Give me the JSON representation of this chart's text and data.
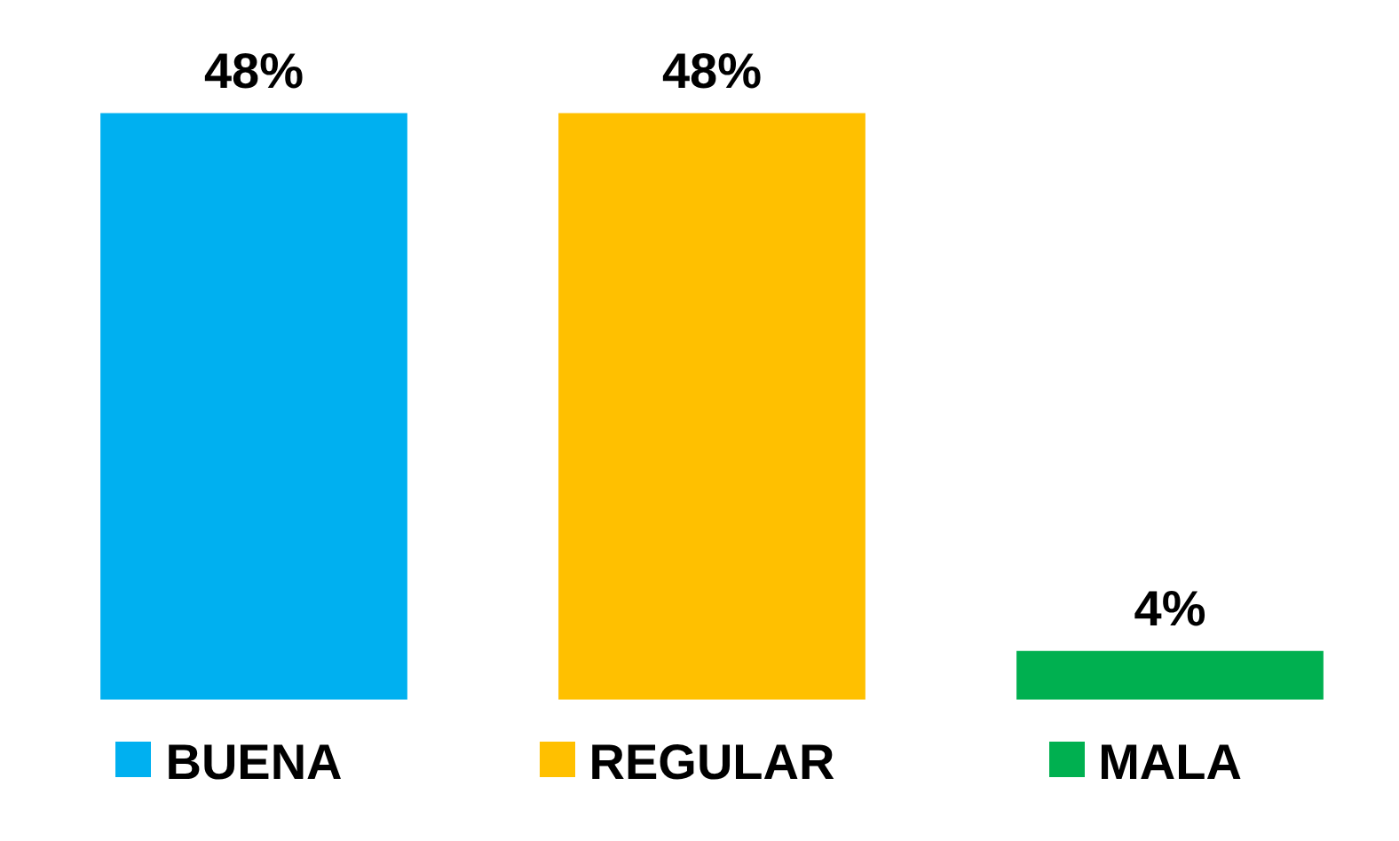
{
  "chart_data": {
    "type": "bar",
    "categories": [
      "BUENA",
      "REGULAR",
      "MALA"
    ],
    "values": [
      48,
      48,
      4
    ],
    "colors": [
      "#00b0f0",
      "#ffc000",
      "#00b050"
    ],
    "value_labels": [
      "48%",
      "48%",
      "4%"
    ],
    "grid": false,
    "tick_labels": "x"
  }
}
